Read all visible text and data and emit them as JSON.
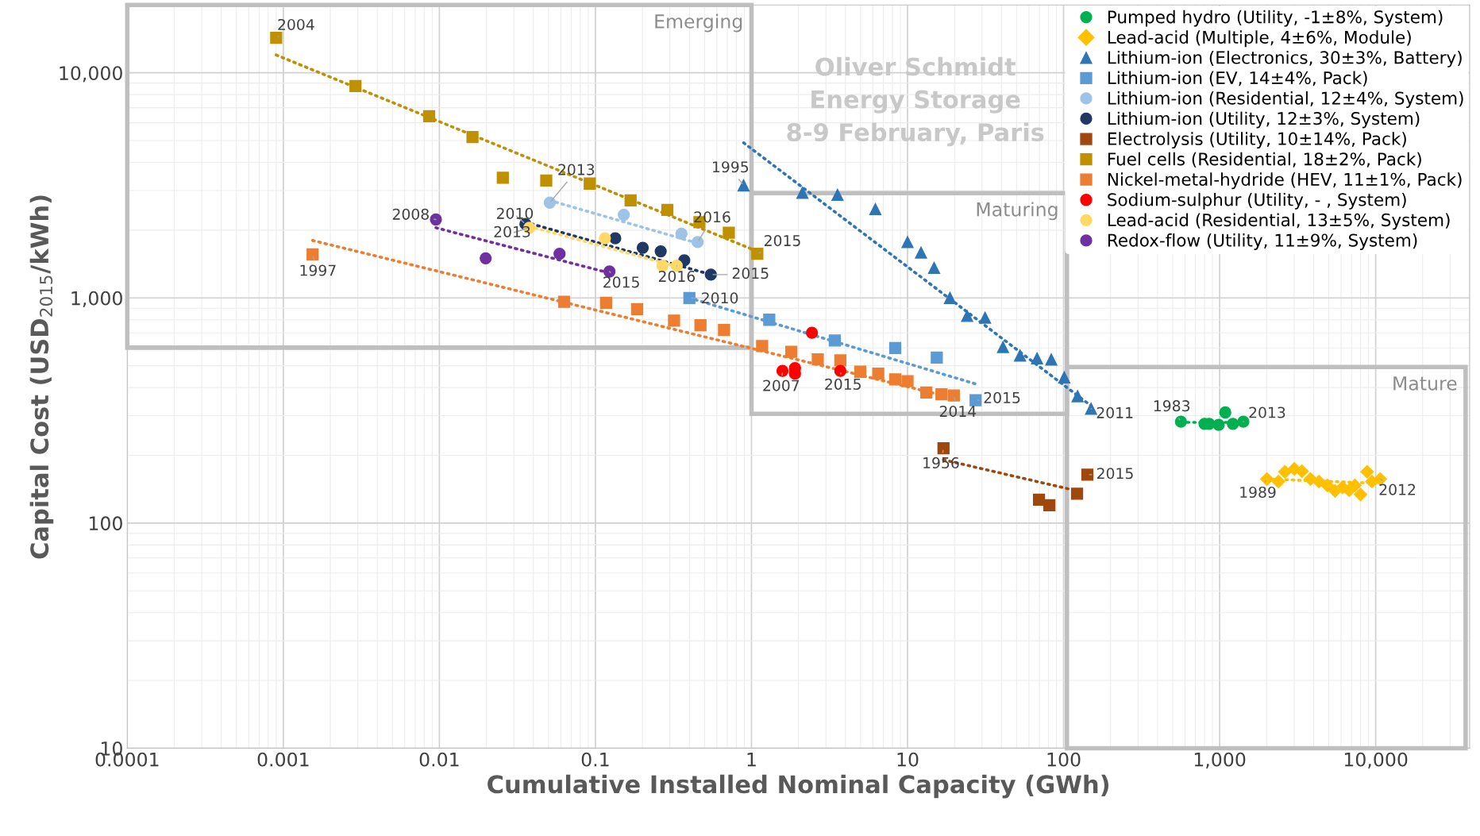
{
  "chart_data": {
    "type": "scatter",
    "xlabel": "Cumulative Installed Nominal Capacity (GWh)",
    "ylabel": "Capital Cost (USD$_{2015}$/kWh)",
    "log": "xy",
    "grid": true,
    "legend": "top right",
    "xlim": [
      0.0001,
      40000
    ],
    "ylim": [
      10,
      20000
    ],
    "xticks": [
      0.0001,
      0.001,
      0.01,
      0.1,
      1,
      10,
      100,
      {
        "value": 1000,
        "label": "1,000"
      },
      {
        "value": 10000,
        "label": "10,000"
      }
    ],
    "yticks": [
      10,
      100,
      {
        "value": 1000,
        "label": "1,000"
      },
      {
        "value": 10000,
        "label": "10,000"
      }
    ],
    "series": [
      {
        "name": "Pumped hydro (Utility, -1±8%, System)",
        "color": "#00b050",
        "marker": "circle",
        "x": [
          565,
          800,
          857,
          986,
          1087,
          1216,
          1419
        ],
        "values": [
          282,
          276,
          276,
          273,
          310,
          276,
          282
        ]
      },
      {
        "name": "Lead-acid (Multiple, 4±6%, Module)",
        "color": "#ffc000",
        "marker": "diamond",
        "x": [
          2010,
          2380,
          2620,
          3010,
          3370,
          3820,
          4330,
          4910,
          5490,
          6130,
          6760,
          7360,
          8000,
          8810,
          9460,
          10700
        ],
        "values": [
          157,
          153,
          169,
          174,
          170,
          157,
          153,
          147,
          139,
          144,
          140,
          147,
          134,
          169,
          153,
          157
        ]
      },
      {
        "name": "Lithium-ion (Electronics, 30±3%, Battery)",
        "color": "#2e75b6",
        "marker": "triangle",
        "x": [
          0.89,
          2.12,
          3.56,
          6.22,
          10,
          12.2,
          14.8,
          18.7,
          24.1,
          31.4,
          40.9,
          52.6,
          67.6,
          83.4,
          101,
          123,
          150
        ],
        "values": [
          3160,
          2930,
          2870,
          2480,
          1770,
          1590,
          1360,
          1000,
          832,
          817,
          605,
          555,
          539,
          533,
          444,
          366,
          322
        ]
      },
      {
        "name": "Lithium-ion (EV, 14±4%, Pack)",
        "color": "#5b9bd5",
        "marker": "square",
        "x": [
          0.4,
          1.3,
          3.42,
          8.34,
          15.4,
          27.3
        ],
        "values": [
          1000,
          800,
          647,
          599,
          543,
          351
        ]
      },
      {
        "name": "Lithium-ion (Residential, 12±4%, System)",
        "color": "#9dc3e6",
        "marker": "circle",
        "x": [
          0.051,
          0.152,
          0.356,
          0.452
        ],
        "values": [
          2650,
          2340,
          1930,
          1770
        ]
      },
      {
        "name": "Lithium-ion (Utility, 12±3%, System)",
        "color": "#1f3864",
        "marker": "circle",
        "x": [
          0.0356,
          0.134,
          0.201,
          0.262,
          0.371,
          0.549
        ],
        "values": [
          2130,
          1840,
          1670,
          1610,
          1470,
          1270
        ]
      },
      {
        "name": "Electrolysis (Utility, 10±14%, Pack)",
        "color": "#9e480e",
        "marker": "square",
        "x": [
          17,
          69.6,
          81.1,
          122,
          142
        ],
        "values": [
          215,
          127,
          120,
          135,
          164
        ]
      },
      {
        "name": "Fuel cells (Residential, 18±2%, Pack)",
        "color": "#bf9000",
        "marker": "square",
        "x": [
          0.0009,
          0.0029,
          0.0086,
          0.0163,
          0.0255,
          0.0484,
          0.092,
          0.168,
          0.289,
          0.464,
          0.716,
          1.09
        ],
        "values": [
          14300,
          8730,
          6410,
          5180,
          3420,
          3320,
          3220,
          2710,
          2460,
          2170,
          1950,
          1570
        ]
      },
      {
        "name": "Nickel-metal-hydride (HEV, 11±1%, Pack)",
        "color": "#ed7d31",
        "marker": "square",
        "x": [
          0.00154,
          0.063,
          0.117,
          0.185,
          0.319,
          0.471,
          0.667,
          1.17,
          1.8,
          2.66,
          3.71,
          4.98,
          6.49,
          8.34,
          10,
          13.2,
          16.5,
          19.8
        ],
        "values": [
          1560,
          961,
          952,
          891,
          793,
          756,
          720,
          611,
          576,
          534,
          528,
          470,
          461,
          435,
          427,
          380,
          373,
          369
        ]
      },
      {
        "name": "Sodium-sulphur (Utility, - , System)",
        "color": "#ff0000",
        "marker": "circle",
        "x": [
          1.58,
          1.9,
          1.9,
          2.44,
          3.71
        ],
        "values": [
          474,
          488,
          461,
          700,
          474
        ]
      },
      {
        "name": "Lead-acid (Residential, 13±5%, System)",
        "color": "#ffd966",
        "marker": "circle",
        "x": [
          0.0377,
          0.115,
          0.269,
          0.332
        ],
        "values": [
          2050,
          1840,
          1390,
          1390
        ]
      },
      {
        "name": "Redox-flow (Utility, 11±9%, System)",
        "color": "#7030a0",
        "marker": "circle",
        "x": [
          0.0095,
          0.0198,
          0.0589,
          0.123
        ],
        "values": [
          2230,
          1500,
          1570,
          1310
        ]
      },
      {
        "type": "line",
        "line_style": "dotted",
        "color": "#00b050",
        "x": [
          565,
          1419
        ],
        "values": [
          280,
          280
        ]
      },
      {
        "type": "line",
        "line_style": "dotted",
        "color": "#ffc000",
        "x": [
          2010,
          10700
        ],
        "values": [
          157,
          150
        ]
      },
      {
        "type": "line",
        "line_style": "dotted",
        "color": "#2e75b6",
        "x": [
          0.89,
          150
        ],
        "values": [
          4890,
          332
        ]
      },
      {
        "type": "line",
        "line_style": "dotted",
        "color": "#5b9bd5",
        "x": [
          0.4,
          27.3
        ],
        "values": [
          1000,
          415
        ]
      },
      {
        "type": "line",
        "line_style": "dotted",
        "color": "#9dc3e6",
        "x": [
          0.051,
          0.452
        ],
        "values": [
          2710,
          1750
        ]
      },
      {
        "type": "line",
        "line_style": "dotted",
        "color": "#1f3864",
        "x": [
          0.0356,
          0.549
        ],
        "values": [
          2170,
          1270
        ]
      },
      {
        "type": "line",
        "line_style": "dotted",
        "color": "#9e480e",
        "x": [
          17,
          122
        ],
        "values": [
          191,
          139
        ]
      },
      {
        "type": "line",
        "line_style": "dotted",
        "color": "#bf9000",
        "x": [
          0.0009,
          1.09
        ],
        "values": [
          12000,
          1610
        ]
      },
      {
        "type": "line",
        "line_style": "dotted",
        "color": "#ed7d31",
        "x": [
          0.00154,
          19.8
        ],
        "values": [
          1800,
          359
        ]
      },
      {
        "type": "line",
        "line_style": "dotted",
        "color": "#ffd966",
        "x": [
          0.0377,
          0.332
        ],
        "values": [
          2080,
          1380
        ]
      },
      {
        "type": "line",
        "line_style": "dotted",
        "color": "#7030a0",
        "x": [
          0.0095,
          0.123
        ],
        "values": [
          2050,
          1290
        ]
      }
    ],
    "annotations": [
      {
        "text": "2004",
        "x": 0.0009,
        "y": 14300
      },
      {
        "text": "2013",
        "x": 0.051,
        "y": 2650
      },
      {
        "text": "1995",
        "x": 0.89,
        "y": 3160
      },
      {
        "text": "2016",
        "x": 0.452,
        "y": 1770
      },
      {
        "text": "2015",
        "x": 1.09,
        "y": 1570
      },
      {
        "text": "2008",
        "x": 0.0095,
        "y": 2230
      },
      {
        "text": "2010",
        "x": 0.0356,
        "y": 2130
      },
      {
        "text": "2013",
        "x": 0.0377,
        "y": 2050
      },
      {
        "text": "2016",
        "x": 0.332,
        "y": 1390
      },
      {
        "text": "2015",
        "x": 0.549,
        "y": 1270
      },
      {
        "text": "2015",
        "x": 0.123,
        "y": 1310
      },
      {
        "text": "2010",
        "x": 0.4,
        "y": 1000
      },
      {
        "text": "1997",
        "x": 0.00154,
        "y": 1560
      },
      {
        "text": "2007",
        "x": 1.58,
        "y": 474
      },
      {
        "text": "2015",
        "x": 3.71,
        "y": 474
      },
      {
        "text": "2014",
        "x": 19.8,
        "y": 369
      },
      {
        "text": "2015",
        "x": 27.3,
        "y": 351
      },
      {
        "text": "2011",
        "x": 150,
        "y": 322
      },
      {
        "text": "1983",
        "x": 565,
        "y": 282
      },
      {
        "text": "2013",
        "x": 1419,
        "y": 282
      },
      {
        "text": "1956",
        "x": 17,
        "y": 215
      },
      {
        "text": "2015",
        "x": 142,
        "y": 164
      },
      {
        "text": "1989",
        "x": 2010,
        "y": 157
      },
      {
        "text": "2012",
        "x": 10700,
        "y": 157
      },
      "Emerging",
      "Maturing",
      "Mature",
      "Oliver Schmidt\nEnergy Storage\n8-9 February, Paris"
    ]
  }
}
